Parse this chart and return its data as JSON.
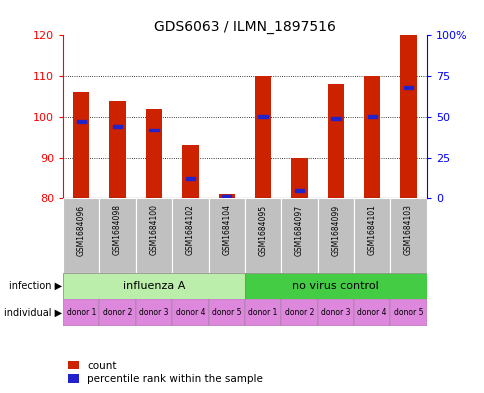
{
  "title": "GDS6063 / ILMN_1897516",
  "samples": [
    "GSM1684096",
    "GSM1684098",
    "GSM1684100",
    "GSM1684102",
    "GSM1684104",
    "GSM1684095",
    "GSM1684097",
    "GSM1684099",
    "GSM1684101",
    "GSM1684103"
  ],
  "counts": [
    106,
    104,
    102,
    93,
    81,
    110,
    90,
    108,
    110,
    120
  ],
  "percentiles": [
    47,
    44,
    42,
    12,
    1,
    50,
    5,
    49,
    50,
    68
  ],
  "ymin": 80,
  "ymax": 120,
  "yticks_left": [
    80,
    90,
    100,
    110,
    120
  ],
  "yticks_right": [
    0,
    25,
    50,
    75,
    100
  ],
  "ytick_labels_right": [
    "0",
    "25",
    "50",
    "75",
    "100%"
  ],
  "bar_color": "#cc2200",
  "blue_color": "#2222cc",
  "infection_groups": [
    {
      "label": "influenza A",
      "start": 0,
      "end": 5,
      "color": "#bbeeaa"
    },
    {
      "label": "no virus control",
      "start": 5,
      "end": 10,
      "color": "#44cc44"
    }
  ],
  "individual_labels": [
    "donor 1",
    "donor 2",
    "donor 3",
    "donor 4",
    "donor 5",
    "donor 1",
    "donor 2",
    "donor 3",
    "donor 4",
    "donor 5"
  ],
  "individual_color": "#dd88dd",
  "gsm_bg_color": "#c0c0c0",
  "infection_label": "infection",
  "individual_label_text": "individual",
  "legend_count_label": "count",
  "legend_pct_label": "percentile rank within the sample",
  "bar_width": 0.45
}
